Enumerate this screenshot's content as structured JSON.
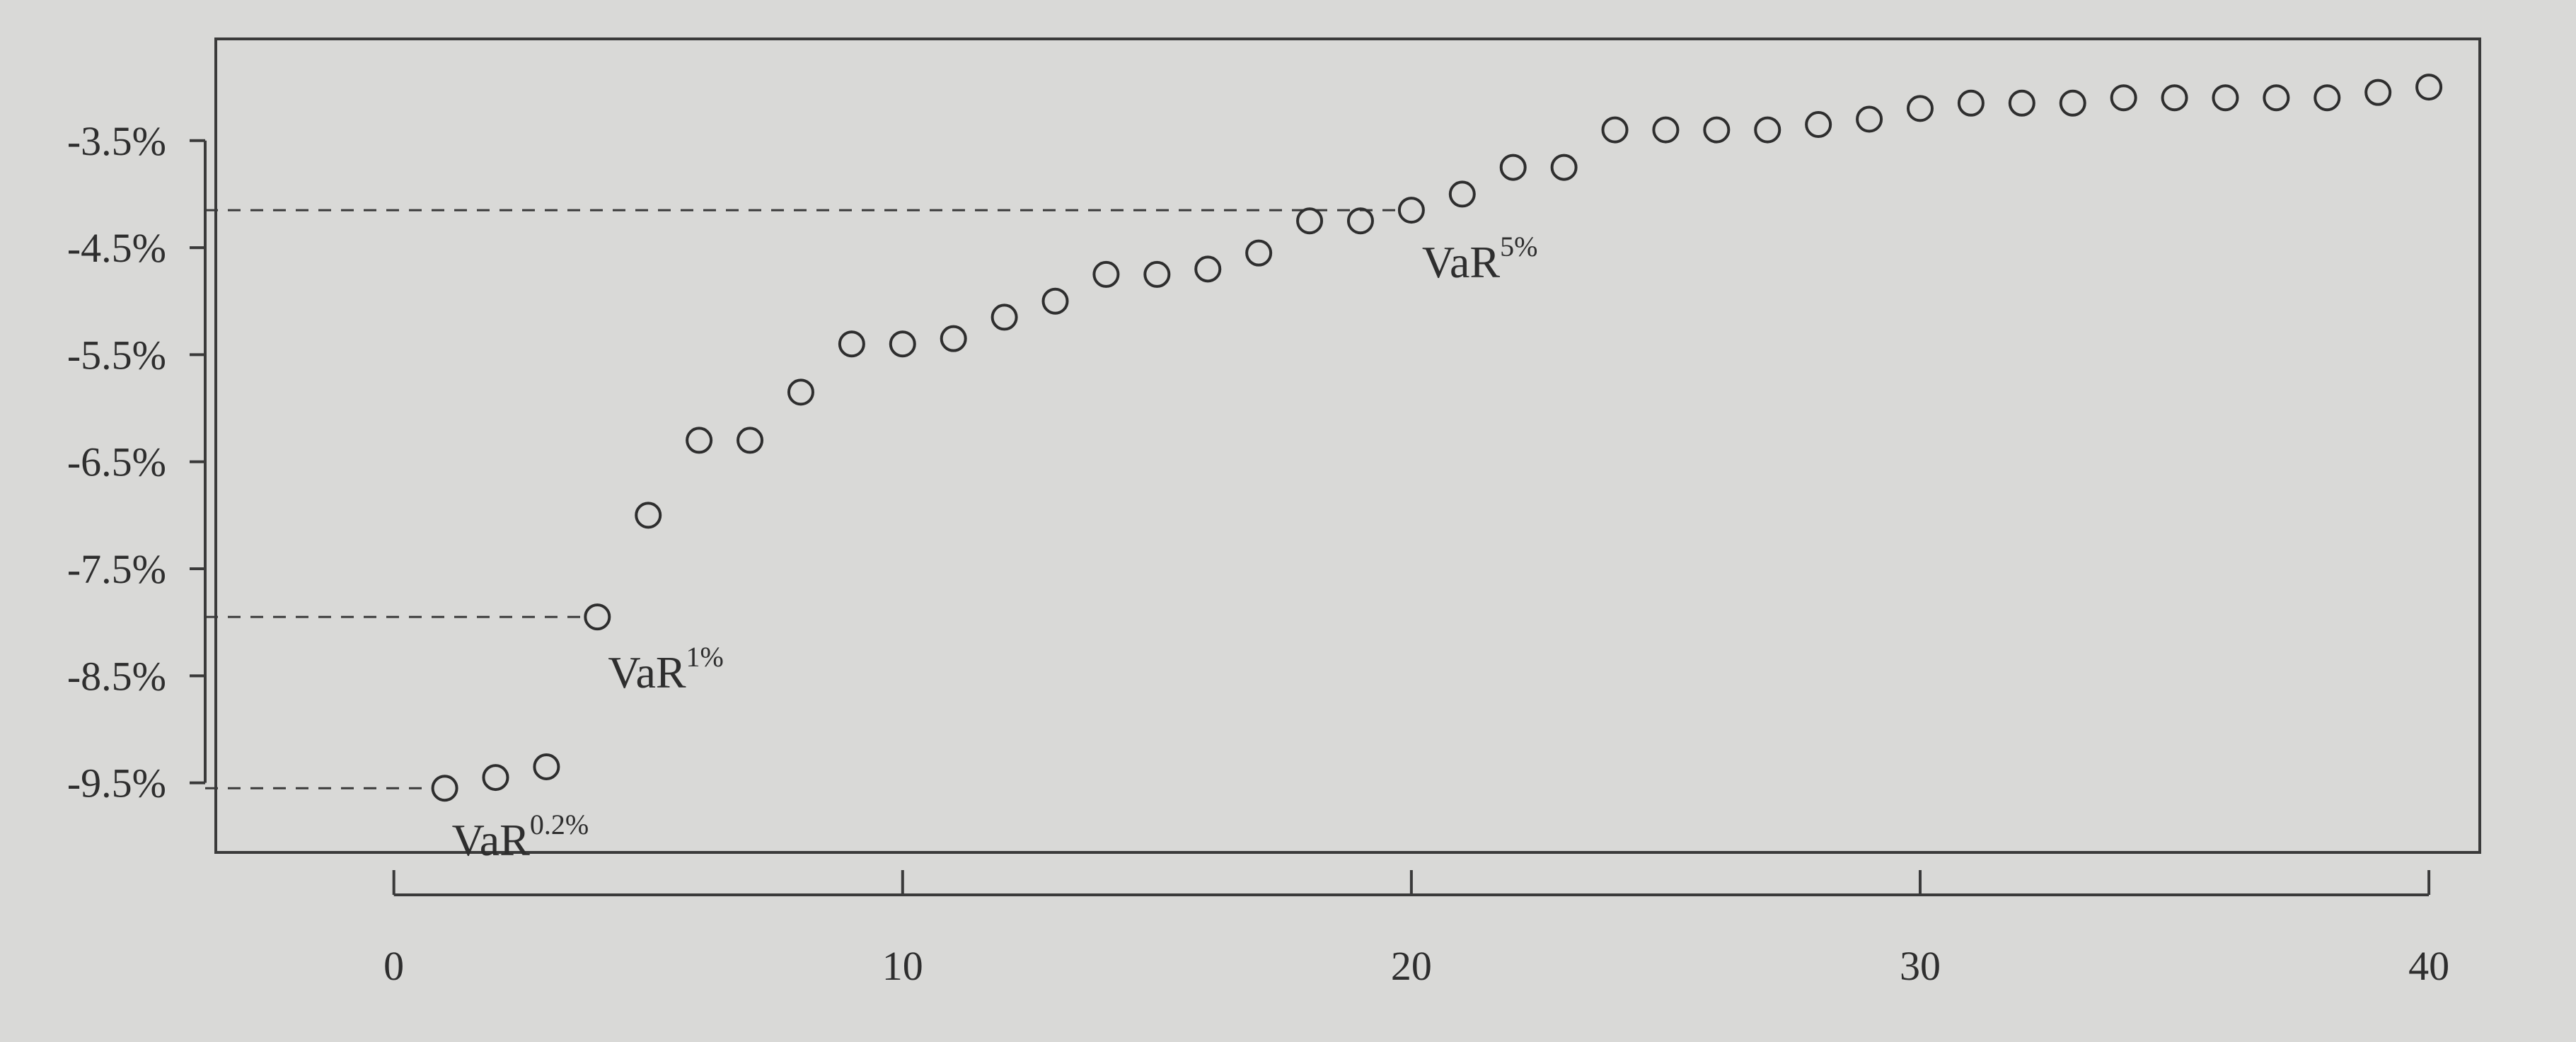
{
  "chart_data": {
    "type": "scatter",
    "title": "",
    "xlabel": "",
    "ylabel": "",
    "xlim": [
      -3.5,
      41
    ],
    "ylim": [
      -10.15,
      -2.55
    ],
    "x_ticks": [
      0,
      10,
      20,
      30,
      40
    ],
    "x_tick_labels": [
      "0",
      "10",
      "20",
      "30",
      "40"
    ],
    "y_ticks": [
      -3.5,
      -4.5,
      -5.5,
      -6.5,
      -7.5,
      -8.5,
      -9.5
    ],
    "y_tick_labels": [
      "-3.5%",
      "-4.5%",
      "-5.5%",
      "-6.5%",
      "-7.5%",
      "-8.5%",
      "-9.5%"
    ],
    "grid": false,
    "series": [
      {
        "x": [
          1,
          2,
          3,
          4,
          5,
          6,
          7,
          8,
          9,
          10,
          11,
          12,
          13,
          14,
          15,
          16,
          17,
          18,
          19,
          20,
          21,
          22,
          23,
          24,
          25,
          26,
          27,
          28,
          29,
          30,
          31,
          32,
          33,
          34,
          35,
          36,
          37,
          38,
          39,
          40
        ],
        "y": [
          -9.55,
          -9.45,
          -9.35,
          -7.95,
          -7.0,
          -6.3,
          -6.3,
          -5.85,
          -5.4,
          -5.4,
          -5.35,
          -5.15,
          -5.0,
          -4.75,
          -4.75,
          -4.7,
          -4.55,
          -4.25,
          -4.25,
          -4.15,
          -4.0,
          -3.75,
          -3.75,
          -3.4,
          -3.4,
          -3.4,
          -3.4,
          -3.35,
          -3.3,
          -3.2,
          -3.15,
          -3.15,
          -3.15,
          -3.1,
          -3.1,
          -3.1,
          -3.1,
          -3.1,
          -3.05,
          -3.0
        ]
      }
    ],
    "annotations": [
      {
        "base": "VaR",
        "sup": "0.2%",
        "x": 1,
        "y": -9.55
      },
      {
        "base": "VaR",
        "sup": "1%",
        "x": 4,
        "y": -7.95
      },
      {
        "base": "VaR",
        "sup": "5%",
        "x": 20,
        "y": -4.15
      }
    ]
  }
}
